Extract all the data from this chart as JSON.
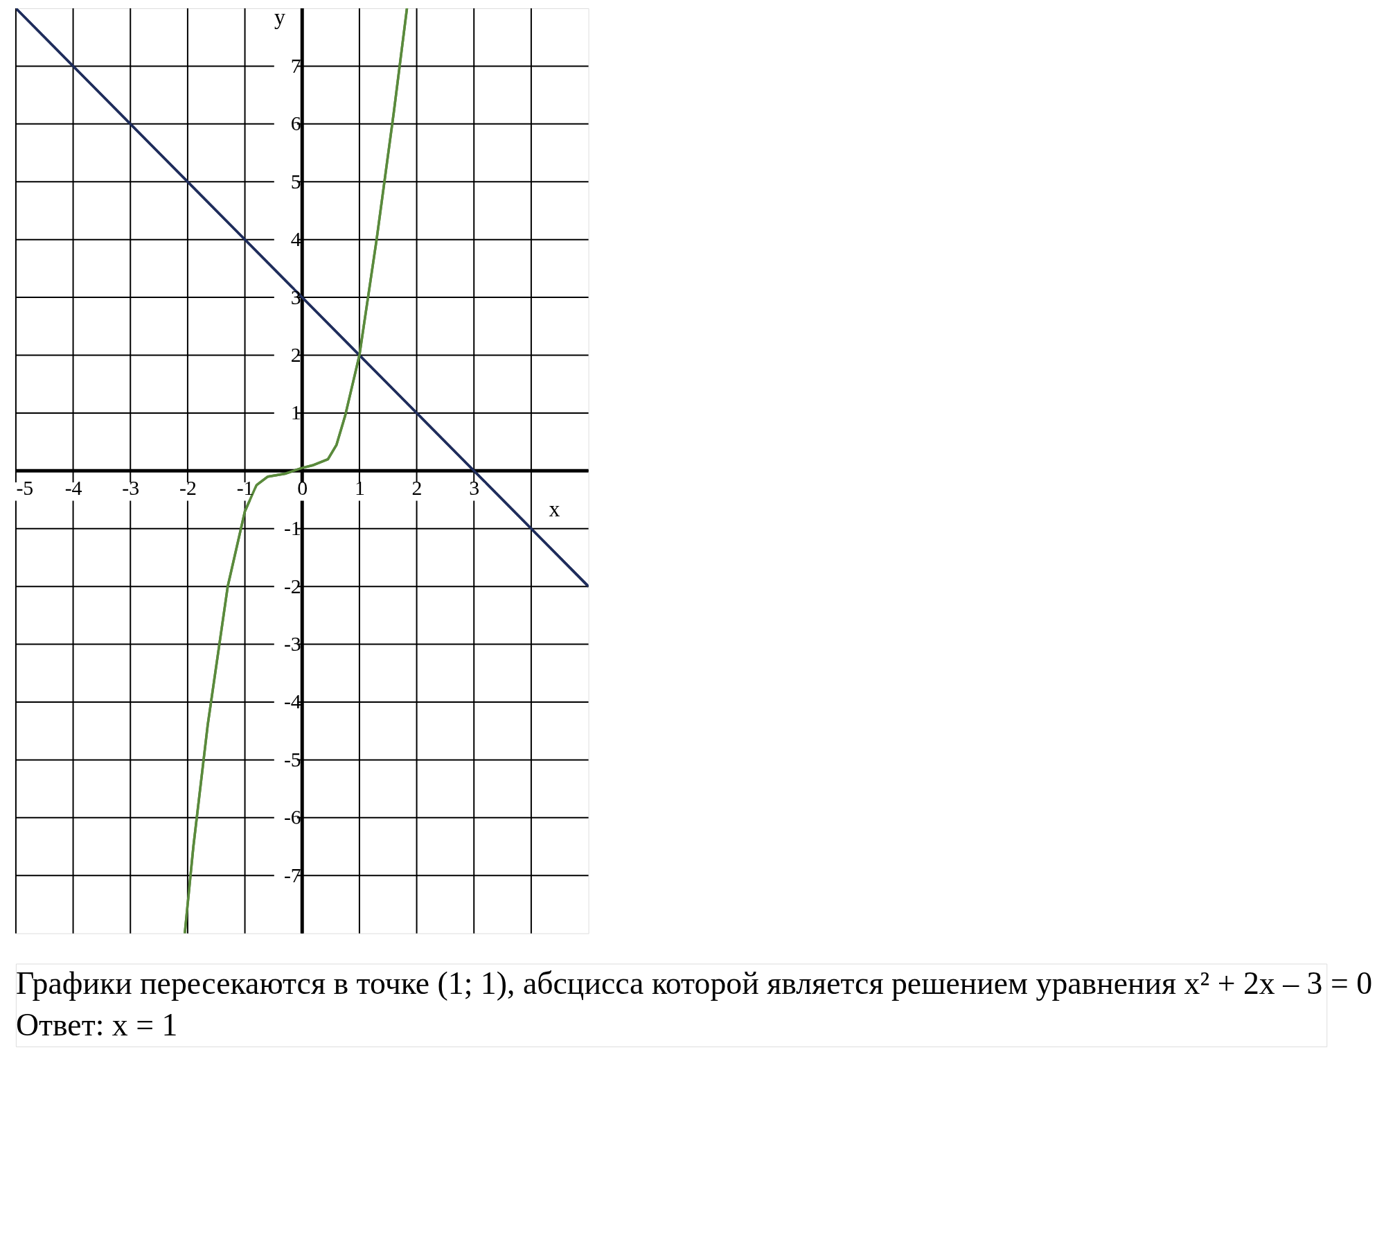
{
  "chart_data": {
    "type": "line",
    "xlabel": "x",
    "ylabel": "y",
    "xlim": [
      -5,
      5
    ],
    "ylim": [
      -8,
      8
    ],
    "xticks": [
      -5,
      -4,
      -3,
      -2,
      -1,
      0,
      1,
      2,
      3,
      {
        "value": 4,
        "label": null
      }
    ],
    "yticks": [
      -7,
      -6,
      -5,
      -4,
      -3,
      -2,
      -1,
      {
        "value": 0,
        "label": null
      },
      1,
      2,
      3,
      4,
      5,
      6,
      7
    ],
    "grid": true,
    "legend": false,
    "marker": "none",
    "line_style": "solid",
    "series": [
      {
        "color": "#1f2d5c",
        "x": [
          -5,
          5
        ],
        "values": [
          8,
          -2
        ]
      },
      {
        "color": "#5a8a3c",
        "x": [
          -2.05,
          -1.9,
          -1.65,
          -1.3,
          -1,
          -0.8,
          -0.6,
          -0.3,
          0,
          0.2,
          0.45,
          0.6,
          0.75,
          1,
          1.3,
          1.6,
          1.83
        ],
        "values": [
          -8,
          -6.5,
          -4.4,
          -2,
          -0.7,
          -0.25,
          -0.1,
          -0.05,
          0.05,
          0.1,
          0.2,
          0.45,
          0.95,
          2,
          4,
          6.2,
          8
        ]
      }
    ],
    "annotations": [
      "Графики пересекаются в точке (1; 1), абсцисса которой является решением уравнения x² + 2x – 3 = 0",
      "Ответ: x = 1"
    ]
  }
}
